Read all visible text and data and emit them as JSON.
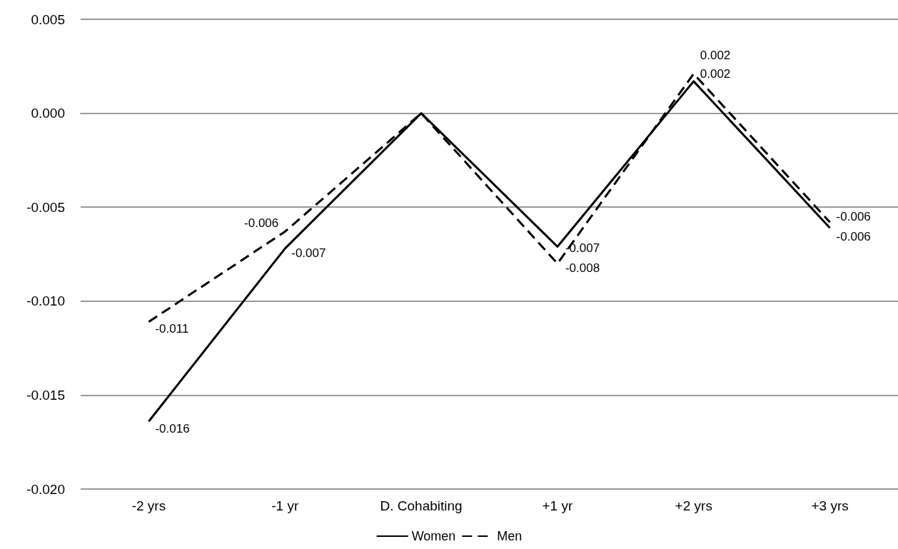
{
  "chart_data": {
    "type": "line",
    "categories": [
      "-2 yrs",
      "-1 yr",
      "D. Cohabiting",
      "+1 yr",
      "+2 yrs",
      "+3 yrs"
    ],
    "series": [
      {
        "name": "Women",
        "color": "#000000",
        "line_style": "solid",
        "values": [
          -0.0164,
          -0.0072,
          0,
          -0.0071,
          0.0017,
          -0.0061
        ],
        "value_labels": [
          "-0.016",
          "-0.007",
          null,
          "-0.007",
          "0.002",
          "-0.006"
        ]
      },
      {
        "name": "Men",
        "color": "#000000",
        "line_style": "dashed",
        "values": [
          -0.0111,
          -0.0063,
          0,
          -0.008,
          0.0021,
          -0.0058
        ],
        "value_labels": [
          "-0.011",
          "-0.006",
          null,
          "-0.008",
          "0.002",
          "-0.006"
        ]
      }
    ],
    "ylim": [
      -0.02,
      0.005
    ],
    "yticks": [
      {
        "value": -0.02,
        "label": "-0.020"
      },
      {
        "value": -0.015,
        "label": "-0.015"
      },
      {
        "value": -0.01,
        "label": "-0.010"
      },
      {
        "value": -0.005,
        "label": "-0.005"
      },
      {
        "value": 0,
        "label": "0.000"
      },
      {
        "value": 0.005,
        "label": "0.005"
      }
    ],
    "grid": "y",
    "legend": "bottom",
    "marker": "none"
  }
}
